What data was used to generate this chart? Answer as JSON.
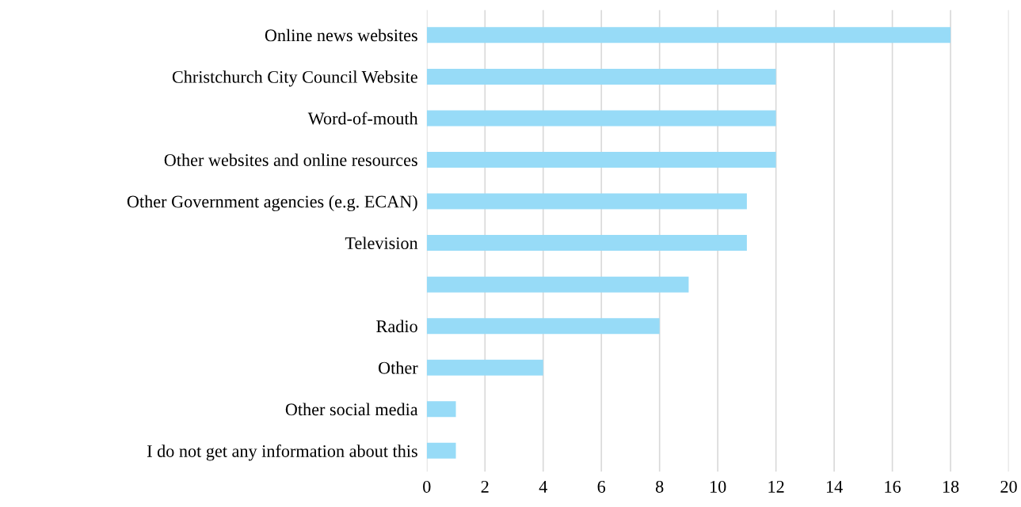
{
  "chart_data": {
    "type": "bar",
    "orientation": "horizontal",
    "categories": [
      "Online news websites",
      "Christchurch City Council Website",
      "Word-of-mouth",
      "Other websites and online resources",
      "Other Government agencies (e.g. ECAN)",
      "Television",
      null,
      "Radio",
      "Other",
      "Other social media",
      "I do not get any information about this"
    ],
    "values": [
      18,
      12,
      12,
      12,
      11,
      11,
      9,
      8,
      4,
      1,
      1
    ],
    "color": "#97dbf7",
    "xlim": [
      0,
      20
    ],
    "xticks": [
      0,
      2,
      4,
      6,
      8,
      10,
      12,
      14,
      16,
      18,
      20
    ],
    "grid": "x",
    "legend": false
  }
}
